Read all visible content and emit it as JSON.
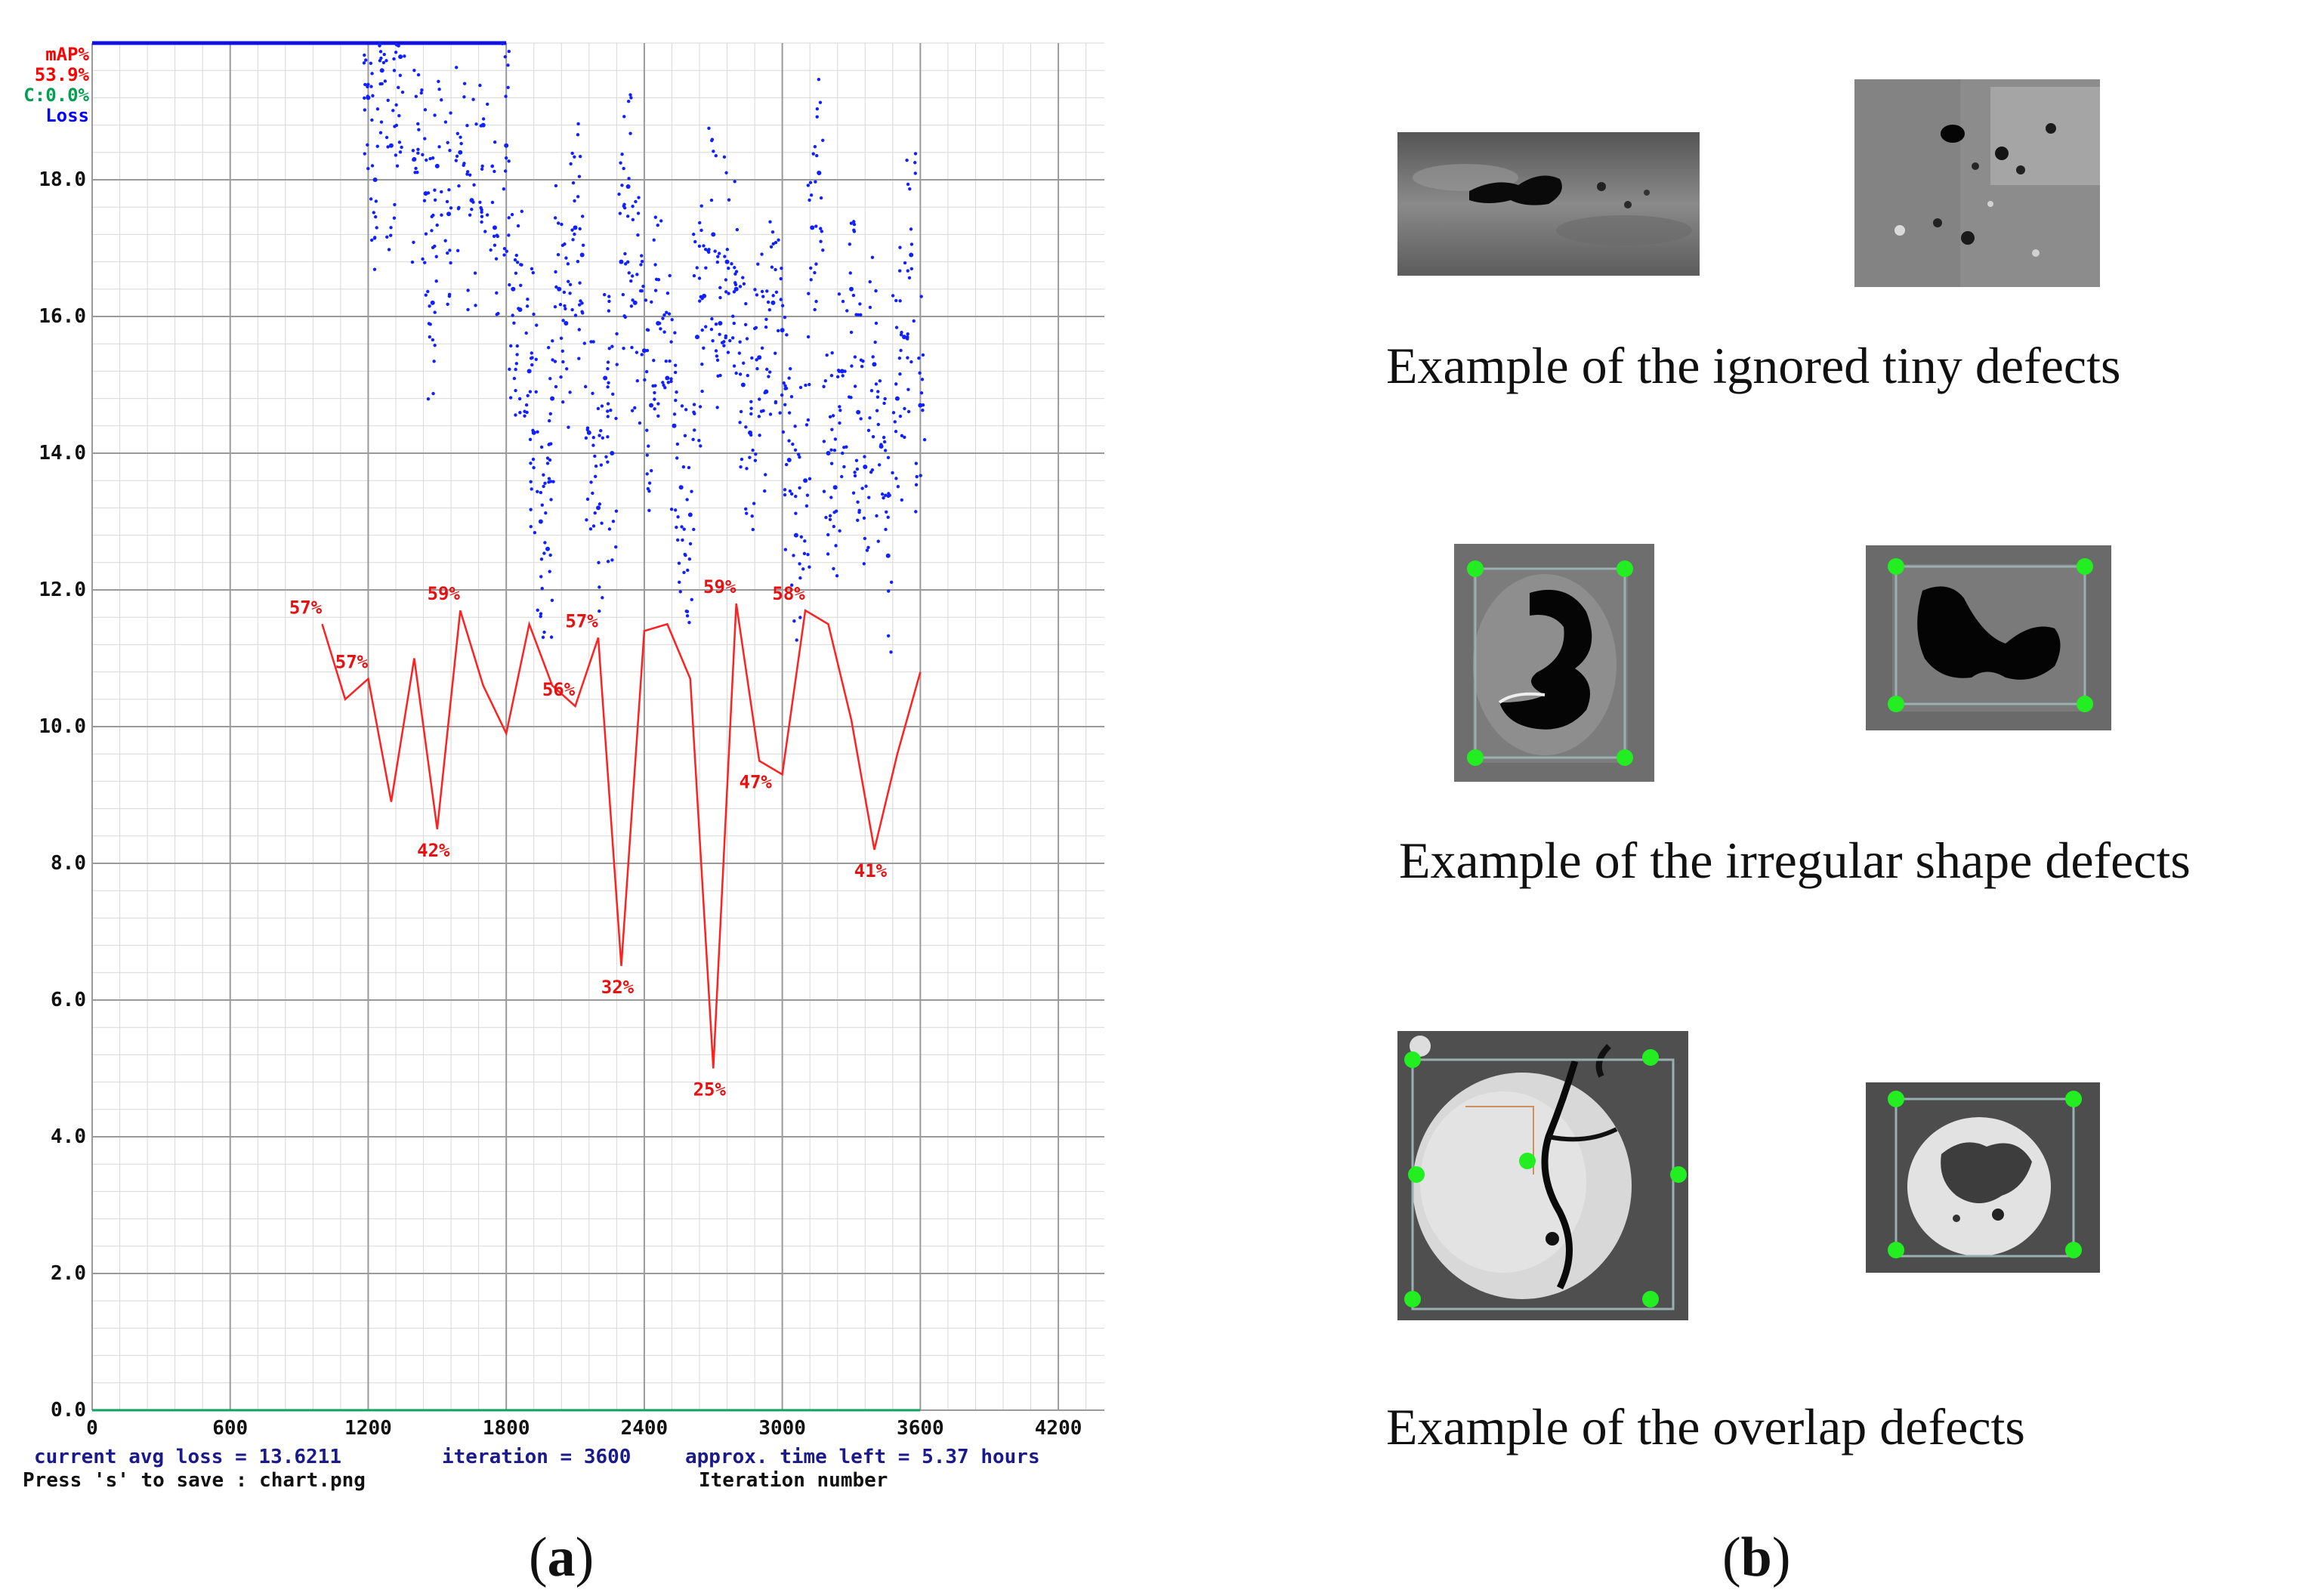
{
  "chart_data": {
    "type": "line",
    "title": "",
    "xlabel": "Iteration number",
    "ylabel": "",
    "xlim": [
      0,
      4400
    ],
    "ylim": [
      0,
      20
    ],
    "x_ticks": [
      0,
      600,
      1200,
      1800,
      2400,
      3000,
      3600,
      4200
    ],
    "x_tick_labels": [
      "0",
      "600",
      "1200",
      "1800",
      "2400",
      "3000",
      "3600",
      "4200"
    ],
    "y_ticks": [
      0,
      2,
      4,
      6,
      8,
      10,
      12,
      14,
      16,
      18
    ],
    "y_tick_labels": [
      "0.0",
      "2.0",
      "4.0",
      "6.0",
      "8.0",
      "10.0",
      "12.0",
      "14.0",
      "16.0",
      "18.0"
    ],
    "legend": [
      {
        "label": "mAP%",
        "color": "#ff0000"
      },
      {
        "label": "53.9%",
        "color": "#ff0000"
      },
      {
        "label": "C:0.0%",
        "color": "#00a050"
      },
      {
        "label": "Loss",
        "color": "#0000ff"
      }
    ],
    "map_series": {
      "name": "mAP%",
      "color": "#ff2020",
      "x": [
        1000,
        1100,
        1200,
        1300,
        1400,
        1500,
        1600,
        1700,
        1800,
        1900,
        2000,
        2100,
        2200,
        2300,
        2400,
        2500,
        2600,
        2700,
        2800,
        2900,
        3000,
        3100,
        3200,
        3300,
        3400,
        3500,
        3600
      ],
      "y": [
        11.5,
        10.4,
        10.7,
        8.9,
        11.0,
        8.5,
        11.7,
        10.6,
        9.9,
        11.5,
        10.6,
        10.3,
        11.3,
        6.5,
        11.4,
        11.5,
        10.7,
        5.0,
        11.8,
        9.5,
        9.3,
        11.7,
        11.5,
        10.1,
        8.2,
        9.6,
        10.8
      ]
    },
    "map_labels": [
      {
        "text": "57%",
        "x": 1000,
        "y": 11.5
      },
      {
        "text": "57%",
        "x": 1200,
        "y": 10.7
      },
      {
        "text": "42%",
        "x": 1500,
        "y": 8.5
      },
      {
        "text": "59%",
        "x": 1600,
        "y": 11.7
      },
      {
        "text": "56%",
        "x": 2100,
        "y": 10.3
      },
      {
        "text": "57%",
        "x": 2200,
        "y": 11.3
      },
      {
        "text": "32%",
        "x": 2300,
        "y": 6.5
      },
      {
        "text": "25%",
        "x": 2700,
        "y": 5.0
      },
      {
        "text": "59%",
        "x": 2800,
        "y": 11.8
      },
      {
        "text": "47%",
        "x": 2900,
        "y": 9.5
      },
      {
        "text": "58%",
        "x": 3100,
        "y": 11.7
      },
      {
        "text": "41%",
        "x": 3400,
        "y": 8.2
      }
    ],
    "loss_series": {
      "name": "Loss",
      "color": "#1020ff",
      "points": [
        [
          1200,
          19.2
        ],
        [
          1230,
          18.0
        ],
        [
          1260,
          19.6
        ],
        [
          1300,
          18.5
        ],
        [
          1340,
          19.8
        ],
        [
          1400,
          18.3
        ],
        [
          1450,
          17.8
        ],
        [
          1480,
          16.2
        ],
        [
          1500,
          18.2
        ],
        [
          1550,
          17.5
        ],
        [
          1600,
          18.4
        ],
        [
          1650,
          17.7
        ],
        [
          1700,
          18.8
        ],
        [
          1750,
          17.3
        ],
        [
          1800,
          18.5
        ],
        [
          1830,
          16.4
        ],
        [
          1860,
          16.1
        ],
        [
          1900,
          15.2
        ],
        [
          1920,
          14.3
        ],
        [
          1950,
          13.0
        ],
        [
          1980,
          12.6
        ],
        [
          2000,
          14.8
        ],
        [
          2030,
          16.4
        ],
        [
          2060,
          15.9
        ],
        [
          2100,
          17.3
        ],
        [
          2130,
          16.9
        ],
        [
          2160,
          14.3
        ],
        [
          2200,
          13.2
        ],
        [
          2230,
          15.1
        ],
        [
          2260,
          14.0
        ],
        [
          2300,
          16.8
        ],
        [
          2330,
          17.9
        ],
        [
          2360,
          16.2
        ],
        [
          2400,
          15.5
        ],
        [
          2430,
          14.7
        ],
        [
          2460,
          15.9
        ],
        [
          2500,
          15.1
        ],
        [
          2530,
          14.4
        ],
        [
          2560,
          13.5
        ],
        [
          2600,
          13.1
        ],
        [
          2630,
          15.7
        ],
        [
          2660,
          16.3
        ],
        [
          2700,
          17.2
        ],
        [
          2730,
          15.9
        ],
        [
          2760,
          16.8
        ],
        [
          2800,
          16.4
        ],
        [
          2830,
          15.0
        ],
        [
          2860,
          14.3
        ],
        [
          2900,
          15.4
        ],
        [
          2930,
          14.9
        ],
        [
          2960,
          16.2
        ],
        [
          3000,
          15.8
        ],
        [
          3030,
          13.9
        ],
        [
          3060,
          12.8
        ],
        [
          3100,
          13.6
        ],
        [
          3130,
          17.3
        ],
        [
          3160,
          18.1
        ],
        [
          3200,
          14.0
        ],
        [
          3230,
          13.5
        ],
        [
          3260,
          15.2
        ],
        [
          3300,
          16.4
        ],
        [
          3330,
          14.6
        ],
        [
          3360,
          13.8
        ],
        [
          3400,
          15.3
        ],
        [
          3430,
          14.1
        ],
        [
          3460,
          12.5
        ],
        [
          3500,
          14.8
        ],
        [
          3530,
          15.7
        ],
        [
          3560,
          16.9
        ],
        [
          3600,
          14.7
        ]
      ]
    }
  },
  "chart_footer": {
    "avg_loss": "current avg loss = 13.6211",
    "iteration": "iteration = 3600",
    "time_left": "approx. time left = 5.37 hours",
    "save_hint": "Press 's' to save : chart.png",
    "x_axis_label": "Iteration number"
  },
  "panel_labels": {
    "a": [
      "(",
      "a",
      ")"
    ],
    "b": [
      "(",
      "b",
      ")"
    ]
  },
  "captions": {
    "tiny": "Example of the ignored tiny defects",
    "irregular": "Example of the irregular shape defects",
    "overlap": "Example of the overlap defects"
  },
  "colors": {
    "grid_major": "#9a9a9a",
    "grid_minor": "#d8d8d8",
    "marker": "#22ee22",
    "footer_text": "#1a1a8c"
  }
}
